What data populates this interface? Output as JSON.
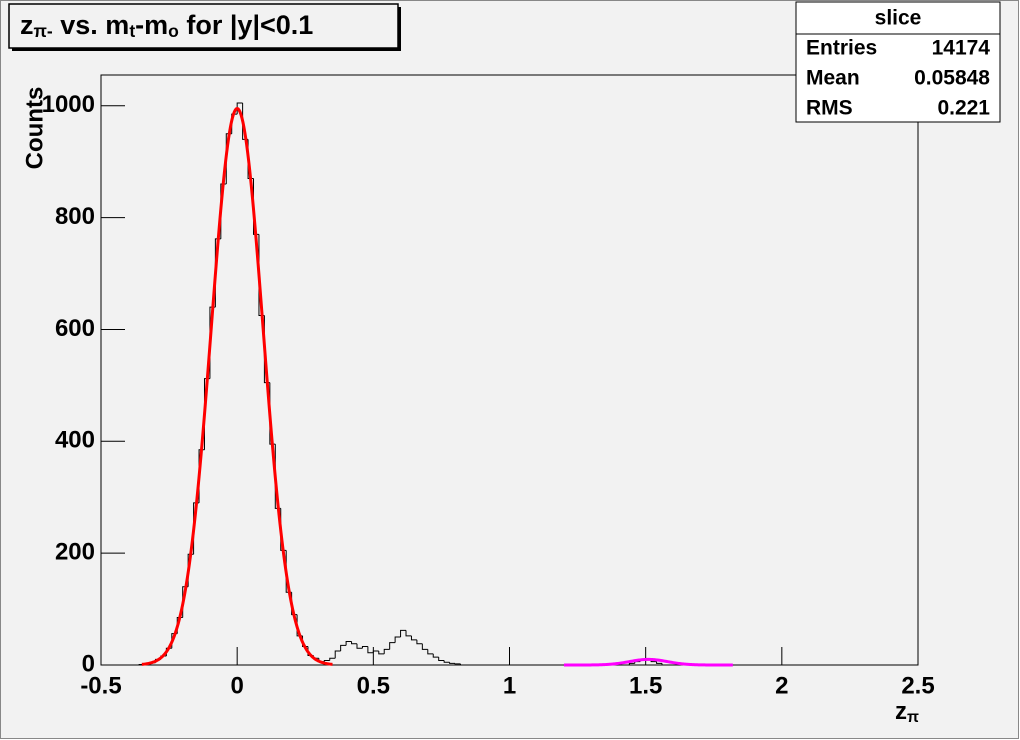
{
  "chart_data": {
    "type": "histogram",
    "title": [
      {
        "text": "z",
        "sub": "π-"
      },
      {
        "text": " vs. m",
        "sub": "t"
      },
      {
        "text": "-m",
        "sub": "o"
      },
      {
        "text": " for |y|<0.1"
      }
    ],
    "x_label": {
      "text": "z",
      "sub": "π"
    },
    "y_label": "Counts",
    "stats": {
      "title": "slice",
      "rows": [
        [
          "Entries",
          14174
        ],
        [
          "Mean",
          0.05848
        ],
        [
          "RMS",
          0.221
        ]
      ]
    },
    "bins": [
      -0.5,
      -0.48,
      -0.46,
      -0.44,
      -0.42,
      -0.4,
      -0.38,
      -0.36,
      -0.34,
      -0.32,
      -0.3,
      -0.28,
      -0.26,
      -0.24,
      -0.22,
      -0.2,
      -0.18,
      -0.16,
      -0.14,
      -0.12,
      -0.1,
      -0.08,
      -0.06,
      -0.04,
      -0.02,
      0,
      0.02,
      0.04,
      0.06,
      0.08,
      0.1,
      0.12,
      0.14,
      0.16,
      0.18,
      0.2,
      0.22,
      0.24,
      0.26,
      0.28,
      0.3,
      0.32,
      0.34,
      0.36,
      0.38,
      0.4,
      0.42,
      0.44,
      0.46,
      0.48,
      0.5,
      0.52,
      0.54,
      0.56,
      0.58,
      0.6,
      0.62,
      0.64,
      0.66,
      0.68,
      0.7,
      0.72,
      0.74,
      0.76,
      0.78,
      0.8,
      0.82,
      0.84,
      0.86,
      0.88,
      0.9,
      0.92,
      0.94,
      0.96,
      0.98,
      1,
      1.02,
      1.04,
      1.06,
      1.08,
      1.1,
      1.12,
      1.14,
      1.16,
      1.18,
      1.2,
      1.22,
      1.24,
      1.26,
      1.28,
      1.3,
      1.32,
      1.34,
      1.36,
      1.38,
      1.4,
      1.42,
      1.44,
      1.46,
      1.48,
      1.5,
      1.52,
      1.54,
      1.56,
      1.58,
      1.6,
      1.62,
      1.64,
      1.66,
      1.68,
      1.7,
      1.72,
      1.74,
      1.76,
      1.78,
      1.8,
      1.82,
      1.84,
      1.86,
      1.88,
      1.9,
      1.92,
      1.94,
      1.96,
      1.98,
      2,
      2.02,
      2.04,
      2.06,
      2.08,
      2.1,
      2.12,
      2.14,
      2.16,
      2.18,
      2.2,
      2.22,
      2.24,
      2.26,
      2.28,
      2.3,
      2.32,
      2.34,
      2.36,
      2.38,
      2.4,
      2.42,
      2.44,
      2.46,
      2.48,
      2.5
    ],
    "values": [
      0,
      0,
      0,
      0,
      0,
      0,
      0,
      1,
      2,
      4,
      10,
      16,
      30,
      56,
      85,
      140,
      198,
      290,
      385,
      512,
      640,
      762,
      860,
      950,
      985,
      1005,
      940,
      870,
      770,
      625,
      505,
      395,
      280,
      205,
      130,
      90,
      52,
      33,
      17,
      12,
      6,
      8,
      12,
      25,
      35,
      42,
      38,
      30,
      33,
      22,
      25,
      20,
      28,
      40,
      50,
      62,
      52,
      45,
      38,
      28,
      20,
      14,
      8,
      5,
      3,
      2,
      0,
      0,
      0,
      0,
      0,
      0,
      0,
      0,
      0,
      0,
      0,
      0,
      0,
      0,
      0,
      0,
      0,
      0,
      0,
      0,
      0,
      0,
      0,
      0,
      0,
      0,
      0,
      0,
      0,
      0,
      0,
      3,
      6,
      10,
      9,
      6,
      3,
      0,
      0,
      0,
      0,
      0,
      0,
      0,
      0,
      0,
      0,
      0,
      0,
      0,
      0,
      0,
      0,
      0,
      0,
      0,
      0,
      0,
      0,
      0,
      0,
      0,
      0,
      0,
      0,
      0,
      0,
      0,
      0,
      0,
      0,
      0,
      0,
      0,
      0,
      0,
      0,
      0,
      0,
      0,
      0,
      0,
      0,
      0
    ],
    "color": "#000000",
    "fits": [
      {
        "color": "#ff0000",
        "amplitude": 995,
        "mean": 0,
        "sigma": 0.095,
        "range": [
          -0.35,
          0.35
        ]
      },
      {
        "color": "#ff00ff",
        "amplitude": 10,
        "mean": 1.51,
        "sigma": 0.07,
        "range": [
          1.2,
          1.82
        ]
      }
    ],
    "xlim": [
      -0.5,
      2.5
    ],
    "xticks": [
      -0.5,
      0,
      0.5,
      1,
      1.5,
      2,
      2.5
    ],
    "ylim": [
      0,
      1055
    ],
    "yticks": [
      0,
      200,
      400,
      600,
      800,
      1000
    ]
  }
}
